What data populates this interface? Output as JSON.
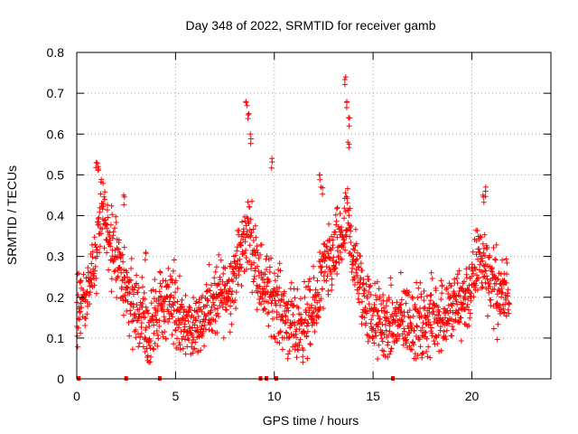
{
  "chart_data": {
    "type": "scatter",
    "title": "Day 348 of 2022, SRMTID for receiver gamb",
    "xlabel": "GPS time / hours",
    "ylabel": "SRMTID / TECUs",
    "xlim": [
      0,
      24
    ],
    "ylim": [
      0,
      0.8
    ],
    "xticks": [
      0,
      5,
      10,
      15,
      20
    ],
    "xtick_labels": [
      "0",
      "5",
      "10",
      "15",
      "20"
    ],
    "yticks": [
      0,
      0.1,
      0.2,
      0.3,
      0.4,
      0.5,
      0.6,
      0.7,
      0.8
    ],
    "ytick_labels": [
      "0",
      "0.1",
      "0.2",
      "0.3",
      "0.4",
      "0.5",
      "0.6",
      "0.7",
      "0.8"
    ],
    "grid": true,
    "marker": "+",
    "point_color": "#ff0000",
    "time_range_hours": [
      0,
      21.9
    ],
    "series": [
      {
        "name": "SRMTID",
        "trend": {
          "x": [
            0.0,
            0.5,
            1.0,
            1.3,
            1.7,
            2.2,
            2.7,
            3.2,
            3.7,
            4.3,
            4.8,
            5.3,
            5.8,
            6.3,
            6.8,
            7.3,
            7.8,
            8.3,
            8.7,
            9.0,
            9.5,
            10.0,
            10.5,
            11.0,
            11.5,
            12.0,
            12.4,
            12.8,
            13.3,
            13.7,
            14.0,
            14.5,
            15.0,
            15.5,
            16.0,
            16.5,
            17.0,
            17.5,
            18.0,
            18.5,
            19.0,
            19.5,
            20.0,
            20.3,
            20.7,
            21.0,
            21.5,
            21.9
          ],
          "y": [
            0.15,
            0.2,
            0.3,
            0.43,
            0.33,
            0.28,
            0.2,
            0.15,
            0.1,
            0.18,
            0.2,
            0.13,
            0.12,
            0.16,
            0.18,
            0.2,
            0.23,
            0.3,
            0.37,
            0.3,
            0.22,
            0.2,
            0.16,
            0.12,
            0.14,
            0.16,
            0.25,
            0.28,
            0.33,
            0.38,
            0.3,
            0.2,
            0.15,
            0.13,
            0.13,
            0.15,
            0.14,
            0.13,
            0.15,
            0.16,
            0.17,
            0.19,
            0.22,
            0.3,
            0.28,
            0.24,
            0.2,
            0.22
          ]
        },
        "spikes": [
          {
            "x": 1.0,
            "y": 0.53
          },
          {
            "x": 1.1,
            "y": 0.52
          },
          {
            "x": 2.4,
            "y": 0.45
          },
          {
            "x": 3.5,
            "y": 0.31
          },
          {
            "x": 8.6,
            "y": 0.68
          },
          {
            "x": 8.7,
            "y": 0.65
          },
          {
            "x": 8.8,
            "y": 0.6
          },
          {
            "x": 9.9,
            "y": 0.54
          },
          {
            "x": 12.3,
            "y": 0.5
          },
          {
            "x": 12.4,
            "y": 0.47
          },
          {
            "x": 13.6,
            "y": 0.74
          },
          {
            "x": 13.7,
            "y": 0.68
          },
          {
            "x": 13.8,
            "y": 0.64
          },
          {
            "x": 13.75,
            "y": 0.58
          },
          {
            "x": 20.7,
            "y": 0.47
          },
          {
            "x": 20.6,
            "y": 0.45
          }
        ],
        "zero_points": [
          {
            "x": 0.1,
            "y": 0
          },
          {
            "x": 2.5,
            "y": 0
          },
          {
            "x": 4.2,
            "y": 0
          },
          {
            "x": 9.3,
            "y": 0
          },
          {
            "x": 9.6,
            "y": 0
          },
          {
            "x": 10.1,
            "y": 0
          },
          {
            "x": 16.0,
            "y": 0
          }
        ]
      }
    ]
  }
}
